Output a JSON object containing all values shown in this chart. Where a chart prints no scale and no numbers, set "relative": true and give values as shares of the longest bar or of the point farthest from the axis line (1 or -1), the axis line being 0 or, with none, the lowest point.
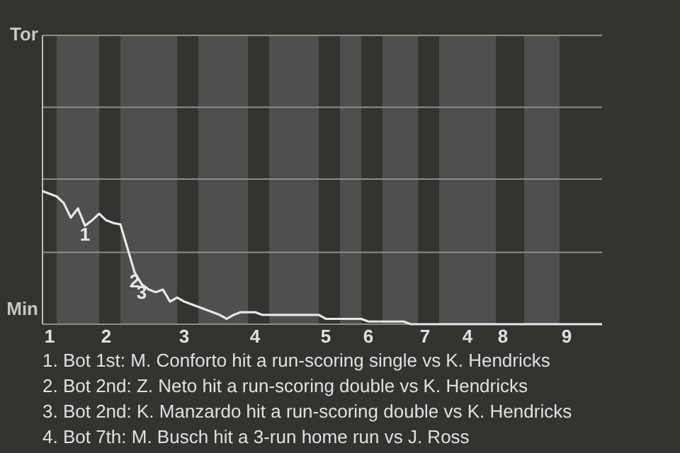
{
  "chart_data": {
    "type": "line",
    "relative": true,
    "categories": [
      null,
      "1",
      null,
      null,
      null,
      null,
      null,
      null,
      null,
      "2",
      null,
      null,
      null,
      null,
      null,
      null,
      null,
      null,
      null,
      null,
      "3",
      null,
      null,
      null,
      null,
      null,
      null,
      null,
      null,
      null,
      "4",
      null,
      null,
      null,
      null,
      null,
      null,
      null,
      null,
      null,
      "5",
      null,
      null,
      null,
      null,
      null,
      "6",
      null,
      null,
      null,
      null,
      null,
      null,
      null,
      "7",
      null,
      null,
      null,
      null,
      null,
      "4",
      null,
      null,
      null,
      null,
      "8",
      null,
      null,
      null,
      null,
      null,
      null,
      null,
      null,
      "9",
      null,
      null,
      null,
      null,
      null
    ],
    "series": [
      {
        "color": "#e8e8e8",
        "values": [
          1,
          0.98,
          0.96,
          0.91,
          0.8,
          0.87,
          0.74,
          0.78,
          0.83,
          0.78,
          0.76,
          0.75,
          0.57,
          0.39,
          0.3,
          0.26,
          0.24,
          0.26,
          0.17,
          0.2,
          0.17,
          0.15,
          0.13,
          0.11,
          0.09,
          0.07,
          0.04,
          0.07,
          0.09,
          0.09,
          0.09,
          0.07,
          0.07,
          0.07,
          0.07,
          0.07,
          0.07,
          0.07,
          0.07,
          0.07,
          0.04,
          0.04,
          0.04,
          0.04,
          0.04,
          0.04,
          0.02,
          0.02,
          0.02,
          0.02,
          0.02,
          0.02,
          0,
          0,
          0,
          0,
          0,
          0,
          0,
          0,
          0,
          0,
          0,
          0,
          0,
          0,
          0,
          0,
          0,
          0,
          0,
          0,
          0,
          0,
          0,
          0,
          0,
          0,
          0,
          0
        ]
      }
    ],
    "ref_lines": [
      {
        "axis": "y",
        "value": 0.54,
        "color": "#8f8d89"
      },
      {
        "axis": "y",
        "value": 1.09,
        "color": "#8f8d89"
      },
      {
        "axis": "y",
        "value": 1.63,
        "color": "#8f8d89"
      },
      {
        "axis": "y",
        "value": 2.17,
        "color": "#8f8d89"
      }
    ],
    "annotations": [
      "Tor",
      "Min",
      {
        "text": "1",
        "y": 0.74
      },
      {
        "text": "2",
        "y": 0.39
      },
      {
        "text": "3",
        "y": 0.3
      },
      "1. Bot 1st: M. Conforto hit a run-scoring single vs K. Hendricks",
      "2. Bot 2nd: Z. Neto hit a run-scoring double vs K. Hendricks",
      "3. Bot 2nd: K. Manzardo hit a run-scoring double vs K. Hendricks",
      "4. Bot 7th: M. Busch hit a 3-run home run vs J. Ross"
    ]
  }
}
